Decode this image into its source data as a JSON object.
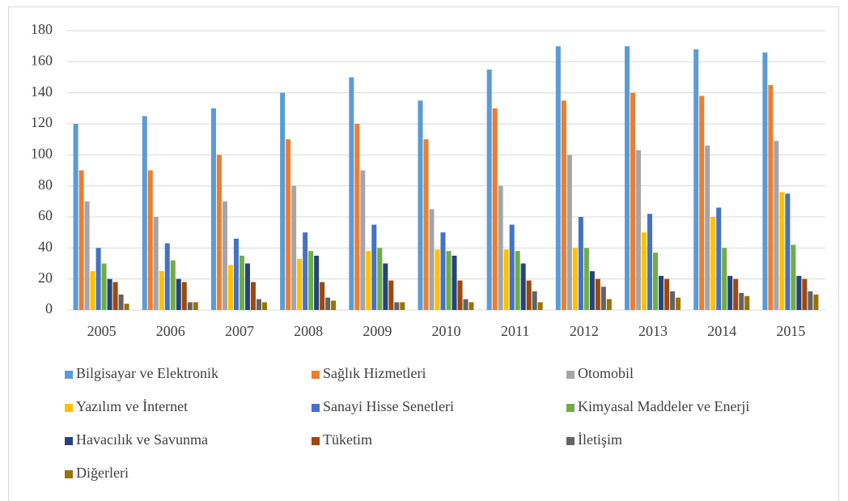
{
  "chart_data": {
    "type": "bar",
    "categories": [
      "2005",
      "2006",
      "2007",
      "2008",
      "2009",
      "2010",
      "2011",
      "2012",
      "2013",
      "2014",
      "2015"
    ],
    "series": [
      {
        "name": "Bilgisayar ve Elektronik",
        "color": "#5b9bd5",
        "values": [
          120,
          125,
          130,
          140,
          150,
          135,
          155,
          170,
          170,
          168,
          166
        ]
      },
      {
        "name": "Sağlık Hizmetleri",
        "color": "#ed7d31",
        "values": [
          90,
          90,
          100,
          110,
          120,
          110,
          130,
          135,
          140,
          138,
          145
        ]
      },
      {
        "name": "Otomobil",
        "color": "#a5a5a5",
        "values": [
          70,
          60,
          70,
          80,
          90,
          65,
          80,
          100,
          103,
          106,
          109
        ]
      },
      {
        "name": "Yazılım ve İnternet",
        "color": "#ffc000",
        "values": [
          25,
          25,
          29,
          33,
          38,
          39,
          39,
          40,
          50,
          60,
          76
        ]
      },
      {
        "name": "Sanayi Hisse Senetleri",
        "color": "#4472c4",
        "values": [
          40,
          43,
          46,
          50,
          55,
          50,
          55,
          60,
          62,
          66,
          75
        ]
      },
      {
        "name": "Kimyasal Maddeler ve Enerji",
        "color": "#70ad47",
        "values": [
          30,
          32,
          35,
          38,
          40,
          38,
          38,
          40,
          37,
          40,
          42
        ]
      },
      {
        "name": "Havacılık ve Savunma",
        "color": "#264478",
        "values": [
          20,
          20,
          30,
          35,
          30,
          35,
          30,
          25,
          22,
          22,
          22
        ]
      },
      {
        "name": "Tüketim",
        "color": "#9e480e",
        "values": [
          18,
          18,
          18,
          18,
          19,
          19,
          19,
          20,
          20,
          20,
          20
        ]
      },
      {
        "name": "İletişim",
        "color": "#636363",
        "values": [
          10,
          5,
          7,
          8,
          5,
          7,
          12,
          15,
          12,
          11,
          12
        ]
      },
      {
        "name": "Diğerleri",
        "color": "#997300",
        "values": [
          4,
          5,
          5,
          6,
          5,
          5,
          5,
          7,
          8,
          9,
          10
        ]
      }
    ],
    "ylim": [
      0,
      180
    ],
    "yticks": [
      0,
      20,
      40,
      60,
      80,
      100,
      120,
      140,
      160,
      180
    ],
    "grid": true,
    "legend": "bottom"
  }
}
